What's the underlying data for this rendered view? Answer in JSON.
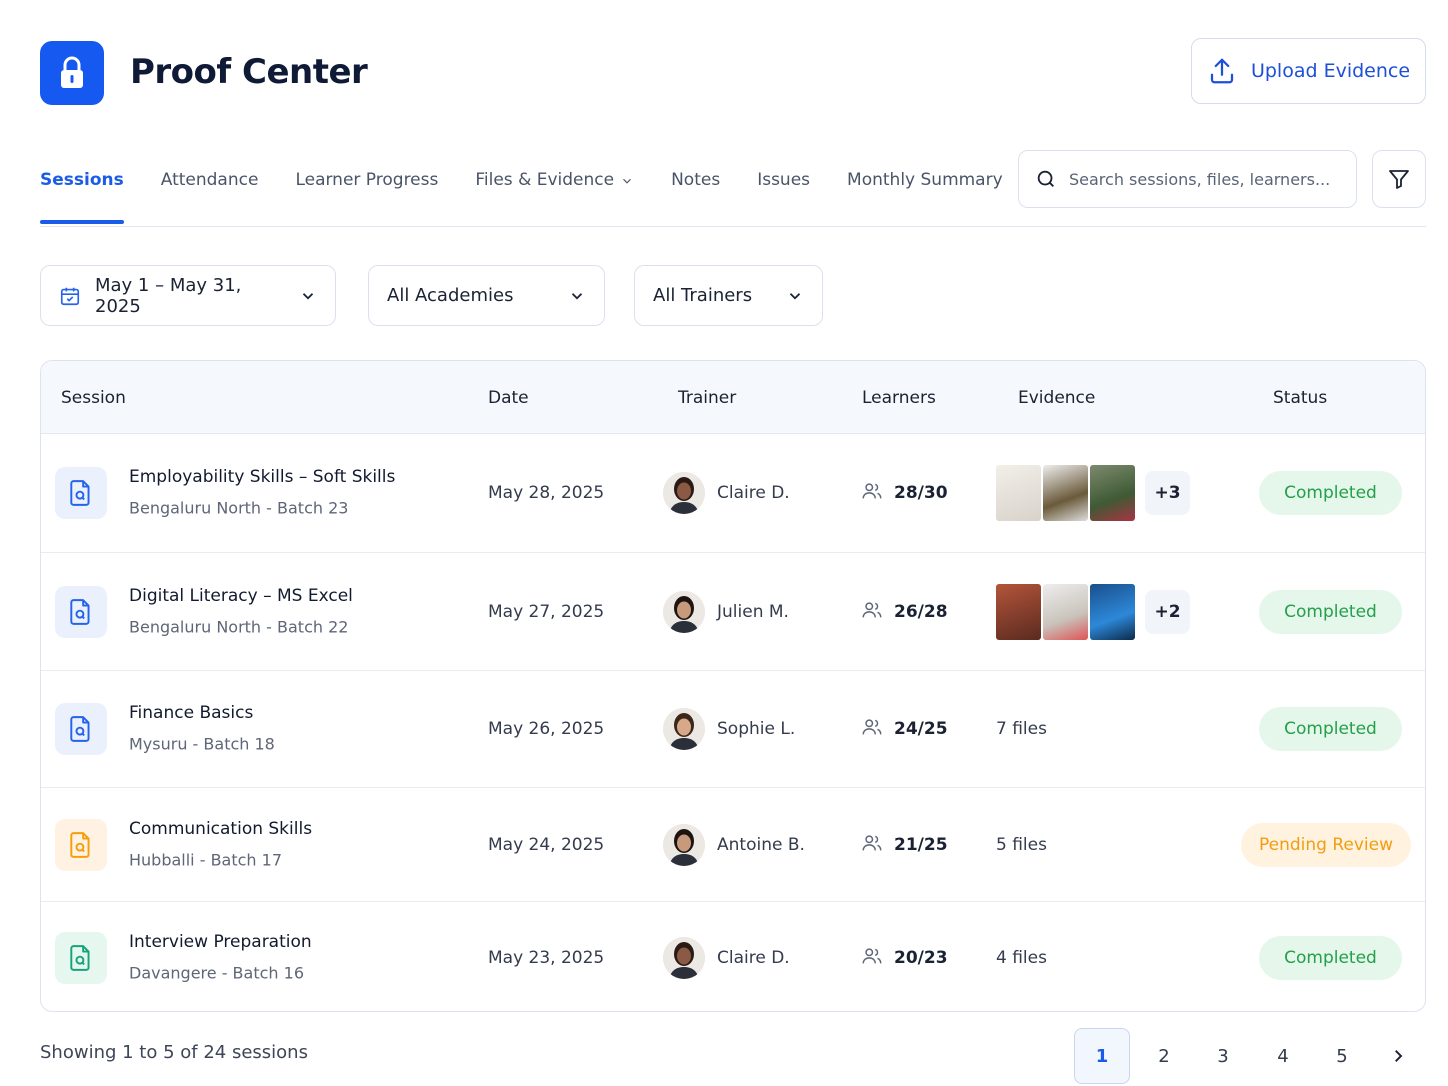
{
  "header": {
    "title": "Proof Center",
    "upload_button": "Upload Evidence"
  },
  "tabs": [
    "Sessions",
    "Attendance",
    "Learner Progress",
    "Files & Evidence",
    "Notes",
    "Issues",
    "Monthly Summary"
  ],
  "search_placeholder": "Search sessions, files, learners...",
  "filters": [
    "May 1 – May 31, 2025",
    "All Academies",
    "All Trainers"
  ],
  "table": {
    "columns": [
      "Session",
      "Date",
      "Trainer",
      "Learners",
      "Evidence",
      "Status"
    ],
    "rows": [
      {
        "session": "Employability Skills – Soft Skills",
        "location": "Bengaluru North - Batch 23",
        "date": "May 28, 2025",
        "trainer": "Claire D.",
        "learners": "28/30",
        "evidence": "+3",
        "status": "Completed"
      },
      {
        "session": "Digital Literacy – MS Excel",
        "location": "Bengaluru North - Batch 22",
        "date": "May 27, 2025",
        "trainer": "Julien M.",
        "learners": "26/28",
        "evidence": "+2",
        "status": "Completed"
      },
      {
        "session": "Finance Basics",
        "location": "Mysuru - Batch 18",
        "date": "May 26, 2025",
        "trainer": "Sophie L.",
        "learners": "24/25",
        "evidence": "7 files",
        "status": "Completed"
      },
      {
        "session": "Communication Skills",
        "location": "Hubballi - Batch 17",
        "date": "May 24, 2025",
        "trainer": "Antoine B.",
        "learners": "21/25",
        "evidence": "5 files",
        "status": "Pending Review"
      },
      {
        "session": "Interview Preparation",
        "location": "Davangere - Batch 16",
        "date": "May 23, 2025",
        "trainer": "Claire D.",
        "learners": "20/23",
        "evidence": "4 files",
        "status": "Completed"
      }
    ]
  },
  "footer": {
    "summary": "Showing 1 to 5 of 24 sessions",
    "pages": [
      1,
      2,
      3,
      4,
      5
    ]
  }
}
